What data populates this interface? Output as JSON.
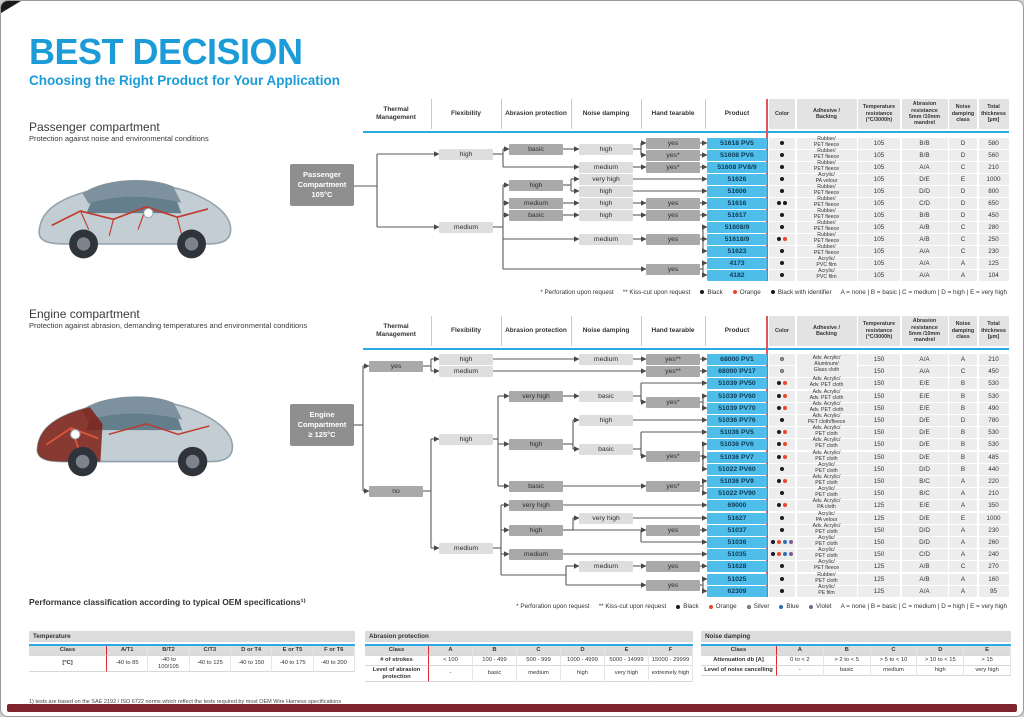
{
  "page": {
    "title": "BEST DECISION",
    "subtitle": "Choosing the Right Product for Your Application"
  },
  "tree_columns": [
    "Thermal Management",
    "Flexibility",
    "Abrasion protection",
    "Noise damping",
    "Hand tearable",
    "Product"
  ],
  "table_columns": [
    "Color",
    "Adhesive /\nBacking",
    "Temperature\nresistance\n(°C/3000h)",
    "Abrasion\nresistance\n5mm /10mm\nmandrel",
    "Noise\ndamping\nclass",
    "Total\nthickness\n[µm]"
  ],
  "colors": {
    "accent_blue": "#1b9cd8",
    "line_blue": "#29abe2",
    "product_blue": "#4fbdea",
    "table_red": "#e0555b",
    "bar_red": "#7d242c",
    "dot_black": "#1a1a1a",
    "dot_orange": "#e8482b",
    "dot_silver": "#9a9a9a",
    "dot_blue": "#2d6db4",
    "dot_violet": "#7a5d99"
  },
  "sections": {
    "passenger": {
      "heading": "Passenger compartment",
      "subheading": "Protection against noise and environmental conditions",
      "root_label": "Passenger\nCompartment\n105°C",
      "nodes": [
        {
          "label": "high",
          "style": "light"
        },
        {
          "label": "medium",
          "style": "light"
        },
        {
          "label": "basic",
          "style": "dark"
        },
        {
          "label": "high",
          "style": "light"
        },
        {
          "label": "yes",
          "style": "dark"
        },
        {
          "label": "yes*",
          "style": "dark"
        },
        {
          "label": "medium",
          "style": "light"
        },
        {
          "label": "yes*",
          "style": "dark"
        },
        {
          "label": "high",
          "style": "dark"
        },
        {
          "label": "very high",
          "style": "light"
        },
        {
          "label": "high",
          "style": "light"
        },
        {
          "label": "medium",
          "style": "dark"
        },
        {
          "label": "high",
          "style": "light"
        },
        {
          "label": "yes",
          "style": "dark"
        },
        {
          "label": "basic",
          "style": "dark"
        },
        {
          "label": "high",
          "style": "light"
        },
        {
          "label": "yes",
          "style": "dark"
        },
        {
          "label": "medium",
          "style": "light"
        },
        {
          "label": "yes",
          "style": "dark"
        },
        {
          "label": "yes",
          "style": "dark"
        }
      ],
      "rows": [
        {
          "product": "51618 PV5",
          "colors": [
            "black"
          ],
          "adhesive": "Rubber/\nPET fleece",
          "temp": "105",
          "abrasion": "B/B",
          "noise_class": "D",
          "thickness": "580"
        },
        {
          "product": "51608 PV6",
          "colors": [
            "black"
          ],
          "adhesive": "Rubber/\nPET fleece",
          "temp": "105",
          "abrasion": "B/B",
          "noise_class": "D",
          "thickness": "560"
        },
        {
          "product": "51608 PV8/9",
          "colors": [
            "black"
          ],
          "adhesive": "Rubber/\nPET fleece",
          "temp": "105",
          "abrasion": "A/A",
          "noise_class": "C",
          "thickness": "210"
        },
        {
          "product": "51626",
          "colors": [
            "black"
          ],
          "adhesive": "Acrylic/\nPA velour",
          "temp": "105",
          "abrasion": "D/E",
          "noise_class": "E",
          "thickness": "1000"
        },
        {
          "product": "51606",
          "colors": [
            "black"
          ],
          "adhesive": "Rubber/\nPET fleece",
          "temp": "105",
          "abrasion": "D/D",
          "noise_class": "D",
          "thickness": "800"
        },
        {
          "product": "51616",
          "colors": [
            "black",
            "black"
          ],
          "adhesive": "Rubber/\nPET fleece",
          "temp": "105",
          "abrasion": "C/D",
          "noise_class": "D",
          "thickness": "650"
        },
        {
          "product": "51617",
          "colors": [
            "black"
          ],
          "adhesive": "Rubber/\nPET fleece",
          "temp": "105",
          "abrasion": "B/B",
          "noise_class": "D",
          "thickness": "450"
        },
        {
          "product": "51608/9",
          "colors": [
            "black"
          ],
          "adhesive": "Rubber/\nPET fleece",
          "temp": "105",
          "abrasion": "A/B",
          "noise_class": "C",
          "thickness": "280"
        },
        {
          "product": "51618/9",
          "colors": [
            "black",
            "orange"
          ],
          "adhesive": "Rubber/\nPET fleece",
          "temp": "105",
          "abrasion": "A/B",
          "noise_class": "C",
          "thickness": "250"
        },
        {
          "product": "51623",
          "colors": [
            "black"
          ],
          "adhesive": "Rubber/\nPET fleece",
          "temp": "105",
          "abrasion": "A/A",
          "noise_class": "C",
          "thickness": "230"
        },
        {
          "product": "4173",
          "colors": [
            "black"
          ],
          "adhesive": "Acrylic/\nPVC film",
          "temp": "105",
          "abrasion": "A/A",
          "noise_class": "A",
          "thickness": "125"
        },
        {
          "product": "4182",
          "colors": [
            "black"
          ],
          "adhesive": "Acrylic/\nPVC film",
          "temp": "105",
          "abrasion": "A/A",
          "noise_class": "A",
          "thickness": "104"
        }
      ],
      "footnote": {
        "marks": [
          "* Perforation upon request",
          "** Kiss-cut upon request"
        ],
        "legend": [
          {
            "color": "black",
            "label": "Black"
          },
          {
            "color": "orange",
            "label": "Orange"
          },
          {
            "color": "black",
            "label": "Black with identifier"
          }
        ],
        "scale": "A = none | B = basic | C = medium | D = high | E = very high"
      }
    },
    "engine": {
      "heading": "Engine compartment",
      "subheading": "Protection against abrasion, demanding temperatures and environmental conditions",
      "root_label": "Engine\nCompartment\n≥ 125°C",
      "nodes": [
        {
          "label": "yes",
          "style": "dark"
        },
        {
          "label": "no",
          "style": "dark"
        },
        {
          "label": "high",
          "style": "light"
        },
        {
          "label": "medium",
          "style": "light"
        },
        {
          "label": "medium",
          "style": "light"
        },
        {
          "label": "yes**",
          "style": "dark"
        },
        {
          "label": "yes**",
          "style": "dark"
        },
        {
          "label": "high",
          "style": "light"
        },
        {
          "label": "very high",
          "style": "dark"
        },
        {
          "label": "basic",
          "style": "light"
        },
        {
          "label": "yes*",
          "style": "dark"
        },
        {
          "label": "high",
          "style": "dark"
        },
        {
          "label": "high",
          "style": "light"
        },
        {
          "label": "basic",
          "style": "light"
        },
        {
          "label": "yes*",
          "style": "dark"
        },
        {
          "label": "basic",
          "style": "dark"
        },
        {
          "label": "yes*",
          "style": "dark"
        },
        {
          "label": "medium",
          "style": "light"
        },
        {
          "label": "very high",
          "style": "dark"
        },
        {
          "label": "high",
          "style": "dark"
        },
        {
          "label": "very high",
          "style": "light"
        },
        {
          "label": "yes",
          "style": "dark"
        },
        {
          "label": "medium",
          "style": "dark"
        },
        {
          "label": "medium",
          "style": "light"
        },
        {
          "label": "yes",
          "style": "dark"
        },
        {
          "label": "yes",
          "style": "dark"
        }
      ],
      "rows": [
        {
          "product": "68000 PV1",
          "colors": [
            "silver"
          ],
          "adhesive": "Adv. Acrylic/\nAluminum/\nGlass cloth",
          "adhesive_span": 2,
          "temp": "150",
          "abrasion": "A/A",
          "noise_class": "A",
          "thickness": "210"
        },
        {
          "product": "68000 PV17",
          "colors": [
            "silver"
          ],
          "adhesive": null,
          "temp": "150",
          "abrasion": "A/A",
          "noise_class": "C",
          "thickness": "450"
        },
        {
          "product": "51039 PV50",
          "colors": [
            "black",
            "orange"
          ],
          "adhesive": "Adv. Acrylic/\nAdv. PET cloth",
          "temp": "150",
          "abrasion": "E/E",
          "noise_class": "B",
          "thickness": "530"
        },
        {
          "product": "51039 PV60",
          "colors": [
            "black",
            "orange"
          ],
          "adhesive": "Adv. Acrylic/\nAdv. PET cloth",
          "temp": "150",
          "abrasion": "E/E",
          "noise_class": "B",
          "thickness": "530"
        },
        {
          "product": "51039 PV70",
          "colors": [
            "black",
            "orange"
          ],
          "adhesive": "Adv. Acrylic/\nAdv. PET cloth",
          "temp": "150",
          "abrasion": "E/E",
          "noise_class": "B",
          "thickness": "490"
        },
        {
          "product": "51036 PV76",
          "colors": [
            "black"
          ],
          "adhesive": "Adv. Acrylic/\nPET cloth/fleece",
          "temp": "150",
          "abrasion": "D/E",
          "noise_class": "D",
          "thickness": "780"
        },
        {
          "product": "51036 PV5",
          "colors": [
            "black",
            "orange"
          ],
          "adhesive": "Adv. Acrylic/\nPET cloth",
          "temp": "150",
          "abrasion": "D/E",
          "noise_class": "B",
          "thickness": "530"
        },
        {
          "product": "51036 PV6",
          "colors": [
            "black",
            "orange"
          ],
          "adhesive": "Adv. Acrylic/\nPET cloth",
          "temp": "150",
          "abrasion": "D/E",
          "noise_class": "B",
          "thickness": "530"
        },
        {
          "product": "51036 PV7",
          "colors": [
            "black",
            "orange"
          ],
          "adhesive": "Adv. Acrylic/\nPET cloth",
          "temp": "150",
          "abrasion": "D/E",
          "noise_class": "B",
          "thickness": "485"
        },
        {
          "product": "51022 PV60",
          "colors": [
            "black"
          ],
          "adhesive": "Acrylic/\nPET cloth",
          "temp": "150",
          "abrasion": "D/D",
          "noise_class": "B",
          "thickness": "440"
        },
        {
          "product": "51036 PV9",
          "colors": [
            "black",
            "orange"
          ],
          "adhesive": "Adv. Acrylic/\nPET cloth",
          "temp": "150",
          "abrasion": "B/C",
          "noise_class": "A",
          "thickness": "220"
        },
        {
          "product": "51022 PV90",
          "colors": [
            "black"
          ],
          "adhesive": "Acrylic/\nPET cloth",
          "temp": "150",
          "abrasion": "B/C",
          "noise_class": "A",
          "thickness": "210"
        },
        {
          "product": "69000",
          "colors": [
            "black",
            "orange"
          ],
          "adhesive": "Adv. Acrylic/\nPA cloth",
          "temp": "125",
          "abrasion": "E/E",
          "noise_class": "A",
          "thickness": "350"
        },
        {
          "product": "51627",
          "colors": [
            "black"
          ],
          "adhesive": "Acrylic/\nPA velour",
          "temp": "125",
          "abrasion": "D/E",
          "noise_class": "E",
          "thickness": "1000"
        },
        {
          "product": "51037",
          "colors": [
            "black"
          ],
          "adhesive": "Adv. Acrylic/\nPET cloth",
          "temp": "150",
          "abrasion": "D/D",
          "noise_class": "A",
          "thickness": "230"
        },
        {
          "product": "51036",
          "colors": [
            "black",
            "orange",
            "blue",
            "violet"
          ],
          "adhesive": "Acrylic/\nPET cloth",
          "temp": "150",
          "abrasion": "D/D",
          "noise_class": "A",
          "thickness": "260"
        },
        {
          "product": "51035",
          "colors": [
            "black",
            "orange",
            "blue",
            "violet"
          ],
          "adhesive": "Acrylic/\nPET cloth",
          "temp": "150",
          "abrasion": "C/D",
          "noise_class": "A",
          "thickness": "240"
        },
        {
          "product": "51628",
          "colors": [
            "black"
          ],
          "adhesive": "Acrylic/\nPET fleece",
          "temp": "125",
          "abrasion": "A/B",
          "noise_class": "C",
          "thickness": "270"
        },
        {
          "product": "51025",
          "colors": [
            "black"
          ],
          "adhesive": "Rubber/\nPET cloth",
          "temp": "125",
          "abrasion": "A/B",
          "noise_class": "A",
          "thickness": "160"
        },
        {
          "product": "62309",
          "colors": [
            "black"
          ],
          "adhesive": "Acrylic/\nPE film",
          "temp": "125",
          "abrasion": "A/A",
          "noise_class": "A",
          "thickness": "95"
        }
      ],
      "footnote": {
        "marks": [
          "* Perforation upon request",
          "** Kiss-cut upon request"
        ],
        "legend": [
          {
            "color": "black",
            "label": "Black"
          },
          {
            "color": "orange",
            "label": "Orange"
          },
          {
            "color": "silver",
            "label": "Silver"
          },
          {
            "color": "blue",
            "label": "Blue"
          },
          {
            "color": "violet",
            "label": "Violet"
          }
        ],
        "scale": "A = none | B = basic | C = medium | D = high | E = very high"
      }
    }
  },
  "classification": {
    "heading": "Performance classification according to typical OEM specifications¹⁾",
    "tables": [
      {
        "title": "Temperature",
        "row_headers": [
          "Class",
          "[°C]"
        ],
        "columns": [
          "A/T1",
          "B/T2",
          "C/T3",
          "D or T4",
          "E or T5",
          "F or T6"
        ],
        "rows": [
          [
            "-40 to 85",
            "-40 to 100/105",
            "-40 to 125",
            "-40 to 150",
            "-40 to 175",
            "-40 to 200"
          ]
        ]
      },
      {
        "title": "Abrasion protection",
        "row_headers": [
          "Class",
          "# of strokes",
          "Level of abrasion protection"
        ],
        "columns": [
          "A",
          "B",
          "C",
          "D",
          "E",
          "F"
        ],
        "rows": [
          [
            "< 100",
            "100 - 499",
            "500 - 999",
            "1000 - 4999",
            "5000 - 14999",
            "15000 - 29999"
          ],
          [
            "-",
            "basic",
            "medium",
            "high",
            "very high",
            "extremely high"
          ]
        ]
      },
      {
        "title": "Noise damping",
        "row_headers": [
          "Class",
          "Attenuation db [A]",
          "Level of noise cancelling"
        ],
        "columns": [
          "A",
          "B",
          "C",
          "D",
          "E"
        ],
        "rows": [
          [
            "0 to < 2",
            "> 2 to < 5",
            "> 5 to < 10",
            "> 10 to < 15",
            "> 15"
          ],
          [
            "-",
            "basic",
            "medium",
            "high",
            "very high"
          ]
        ]
      }
    ],
    "footnote": "1) tests are based on the SAE 2192 / ISO 6722 norms which reflect the tests required by most OEM Wire Harness specifications"
  }
}
